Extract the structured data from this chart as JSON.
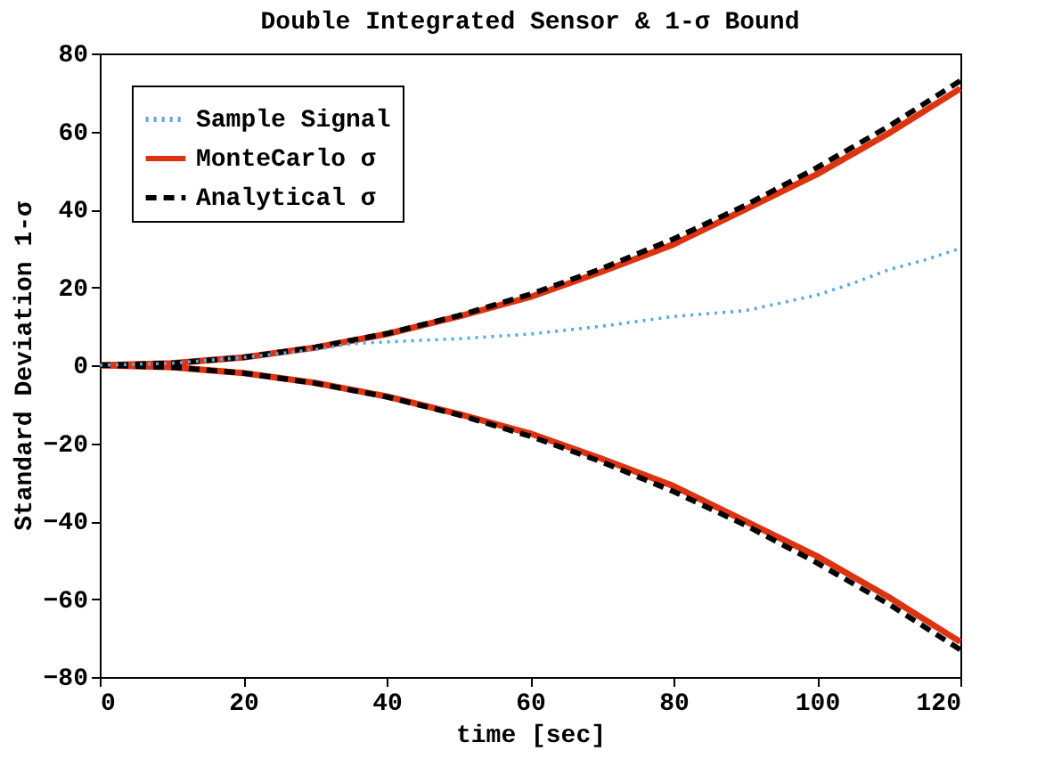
{
  "chart_data": {
    "type": "line",
    "title": "Double Integrated Sensor & 1-σ Bound",
    "xlabel": "time [sec]",
    "ylabel": "Standard Deviation 1-σ",
    "xlim": [
      0,
      120
    ],
    "xticks": [
      0,
      20,
      40,
      60,
      80,
      100,
      120
    ],
    "ylim": [
      -80,
      80
    ],
    "yticks": [
      -80,
      -60,
      -40,
      -20,
      0,
      20,
      40,
      60,
      80
    ],
    "grid": false,
    "legend": "top left",
    "marker": "none",
    "series": [
      {
        "name": "Sample Signal",
        "color": "#5aa9dd",
        "line_style": "dotted",
        "x": [
          0,
          10,
          20,
          30,
          35,
          40,
          50,
          60,
          70,
          80,
          90,
          100,
          105,
          110,
          115,
          120
        ],
        "values": [
          0,
          0.5,
          2,
          4,
          5.5,
          6,
          6.8,
          8,
          10,
          12.5,
          14,
          18,
          21,
          24.5,
          27,
          30
        ]
      },
      {
        "name": "MonteCarlo σ",
        "color": "#dd3311",
        "line_style": "solid",
        "x": [
          0,
          10,
          20,
          30,
          40,
          50,
          60,
          70,
          80,
          90,
          100,
          110,
          120
        ],
        "values": [
          0,
          0.5,
          2,
          4.5,
          8,
          12.5,
          17.5,
          24,
          31,
          40,
          49,
          59.5,
          71
        ]
      },
      {
        "color": "#dd3311",
        "line_style": "solid",
        "x": [
          0,
          10,
          20,
          30,
          40,
          50,
          60,
          70,
          80,
          90,
          100,
          110,
          120
        ],
        "values": [
          0,
          -0.5,
          -2,
          -4.5,
          -8,
          -12.5,
          -17.5,
          -24,
          -31,
          -40,
          -49,
          -59.5,
          -71
        ]
      },
      {
        "name": "Analytical σ",
        "color": "#000000",
        "line_style": "dashed",
        "x": [
          0,
          10,
          20,
          30,
          40,
          50,
          60,
          70,
          80,
          90,
          100,
          110,
          120
        ],
        "values": [
          0,
          0.5,
          2,
          4.6,
          8.1,
          12.7,
          18.2,
          24.8,
          32.4,
          41,
          50.7,
          61.3,
          73
        ]
      },
      {
        "color": "#000000",
        "line_style": "dashed",
        "x": [
          0,
          10,
          20,
          30,
          40,
          50,
          60,
          70,
          80,
          90,
          100,
          110,
          120
        ],
        "values": [
          0,
          -0.5,
          -2,
          -4.6,
          -8.1,
          -12.7,
          -18.2,
          -24.8,
          -32.4,
          -41,
          -50.7,
          -61.3,
          -73
        ]
      }
    ]
  }
}
